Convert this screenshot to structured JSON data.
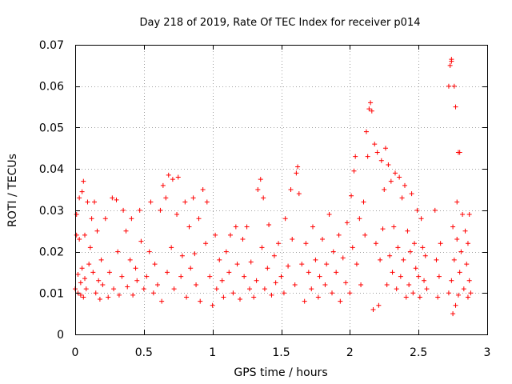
{
  "chart_data": {
    "type": "scatter",
    "title": "Day 218 of 2019, Rate Of TEC Index for receiver p014",
    "xlabel": "GPS time / hours",
    "ylabel": "ROTI / TECUs",
    "xlim": [
      0,
      3
    ],
    "ylim": [
      0,
      0.07
    ],
    "x_ticks": [
      0,
      0.5,
      1,
      1.5,
      2,
      2.5,
      3
    ],
    "x_tick_labels": [
      "0",
      "0.5",
      "1",
      "1.5",
      "2",
      "2.5",
      "3"
    ],
    "y_ticks": [
      0,
      0.01,
      0.02,
      0.03,
      0.04,
      0.05,
      0.06,
      0.07
    ],
    "y_tick_labels": [
      "0",
      "0.01",
      "0.02",
      "0.03",
      "0.04",
      "0.05",
      "0.06",
      "0.07"
    ],
    "grid": true,
    "marker": "+",
    "color": "#ff0000",
    "series": [
      {
        "name": "p014",
        "points": [
          [
            0.0,
            0.011
          ],
          [
            0.01,
            0.024
          ],
          [
            0.01,
            0.029
          ],
          [
            0.02,
            0.01
          ],
          [
            0.02,
            0.0145
          ],
          [
            0.03,
            0.023
          ],
          [
            0.03,
            0.033
          ],
          [
            0.04,
            0.0095
          ],
          [
            0.04,
            0.0125
          ],
          [
            0.05,
            0.0345
          ],
          [
            0.05,
            0.016
          ],
          [
            0.06,
            0.037
          ],
          [
            0.06,
            0.009
          ],
          [
            0.07,
            0.024
          ],
          [
            0.07,
            0.0135
          ],
          [
            0.08,
            0.011
          ],
          [
            0.09,
            0.032
          ],
          [
            0.1,
            0.017
          ],
          [
            0.11,
            0.021
          ],
          [
            0.12,
            0.028
          ],
          [
            0.13,
            0.015
          ],
          [
            0.14,
            0.032
          ],
          [
            0.15,
            0.01
          ],
          [
            0.16,
            0.025
          ],
          [
            0.17,
            0.013
          ],
          [
            0.18,
            0.0085
          ],
          [
            0.19,
            0.018
          ],
          [
            0.2,
            0.012
          ],
          [
            0.22,
            0.028
          ],
          [
            0.24,
            0.009
          ],
          [
            0.25,
            0.015
          ],
          [
            0.27,
            0.033
          ],
          [
            0.28,
            0.011
          ],
          [
            0.3,
            0.0325
          ],
          [
            0.31,
            0.02
          ],
          [
            0.32,
            0.0095
          ],
          [
            0.34,
            0.014
          ],
          [
            0.35,
            0.03
          ],
          [
            0.37,
            0.025
          ],
          [
            0.38,
            0.0115
          ],
          [
            0.4,
            0.018
          ],
          [
            0.41,
            0.028
          ],
          [
            0.42,
            0.0095
          ],
          [
            0.44,
            0.016
          ],
          [
            0.45,
            0.013
          ],
          [
            0.47,
            0.03
          ],
          [
            0.48,
            0.0225
          ],
          [
            0.5,
            0.011
          ],
          [
            0.52,
            0.014
          ],
          [
            0.54,
            0.02
          ],
          [
            0.55,
            0.032
          ],
          [
            0.57,
            0.01
          ],
          [
            0.58,
            0.017
          ],
          [
            0.6,
            0.012
          ],
          [
            0.62,
            0.03
          ],
          [
            0.63,
            0.008
          ],
          [
            0.64,
            0.036
          ],
          [
            0.66,
            0.033
          ],
          [
            0.67,
            0.015
          ],
          [
            0.68,
            0.0385
          ],
          [
            0.7,
            0.021
          ],
          [
            0.71,
            0.0375
          ],
          [
            0.72,
            0.011
          ],
          [
            0.74,
            0.029
          ],
          [
            0.75,
            0.038
          ],
          [
            0.77,
            0.014
          ],
          [
            0.78,
            0.019
          ],
          [
            0.8,
            0.032
          ],
          [
            0.81,
            0.009
          ],
          [
            0.83,
            0.026
          ],
          [
            0.84,
            0.016
          ],
          [
            0.86,
            0.033
          ],
          [
            0.87,
            0.0195
          ],
          [
            0.88,
            0.012
          ],
          [
            0.9,
            0.028
          ],
          [
            0.91,
            0.008
          ],
          [
            0.93,
            0.035
          ],
          [
            0.95,
            0.022
          ],
          [
            0.96,
            0.032
          ],
          [
            0.98,
            0.014
          ],
          [
            1.0,
            0.007
          ],
          [
            1.02,
            0.024
          ],
          [
            1.03,
            0.011
          ],
          [
            1.05,
            0.018
          ],
          [
            1.07,
            0.013
          ],
          [
            1.08,
            0.009
          ],
          [
            1.1,
            0.02
          ],
          [
            1.12,
            0.015
          ],
          [
            1.13,
            0.024
          ],
          [
            1.15,
            0.01
          ],
          [
            1.17,
            0.026
          ],
          [
            1.18,
            0.017
          ],
          [
            1.2,
            0.0085
          ],
          [
            1.22,
            0.023
          ],
          [
            1.23,
            0.014
          ],
          [
            1.25,
            0.026
          ],
          [
            1.27,
            0.011
          ],
          [
            1.28,
            0.0175
          ],
          [
            1.3,
            0.009
          ],
          [
            1.32,
            0.013
          ],
          [
            1.33,
            0.035
          ],
          [
            1.35,
            0.0375
          ],
          [
            1.36,
            0.021
          ],
          [
            1.37,
            0.033
          ],
          [
            1.38,
            0.011
          ],
          [
            1.4,
            0.016
          ],
          [
            1.41,
            0.0265
          ],
          [
            1.43,
            0.0095
          ],
          [
            1.45,
            0.019
          ],
          [
            1.46,
            0.0125
          ],
          [
            1.48,
            0.022
          ],
          [
            1.5,
            0.014
          ],
          [
            1.52,
            0.01
          ],
          [
            1.53,
            0.028
          ],
          [
            1.55,
            0.0165
          ],
          [
            1.57,
            0.035
          ],
          [
            1.58,
            0.023
          ],
          [
            1.6,
            0.012
          ],
          [
            1.61,
            0.039
          ],
          [
            1.62,
            0.0405
          ],
          [
            1.63,
            0.034
          ],
          [
            1.65,
            0.017
          ],
          [
            1.67,
            0.008
          ],
          [
            1.68,
            0.022
          ],
          [
            1.7,
            0.015
          ],
          [
            1.72,
            0.011
          ],
          [
            1.73,
            0.026
          ],
          [
            1.75,
            0.018
          ],
          [
            1.77,
            0.009
          ],
          [
            1.78,
            0.014
          ],
          [
            1.8,
            0.023
          ],
          [
            1.82,
            0.012
          ],
          [
            1.83,
            0.017
          ],
          [
            1.85,
            0.029
          ],
          [
            1.87,
            0.01
          ],
          [
            1.88,
            0.02
          ],
          [
            1.9,
            0.015
          ],
          [
            1.92,
            0.024
          ],
          [
            1.93,
            0.008
          ],
          [
            1.95,
            0.0185
          ],
          [
            1.97,
            0.0125
          ],
          [
            1.98,
            0.027
          ],
          [
            2.0,
            0.01
          ],
          [
            2.01,
            0.0335
          ],
          [
            2.02,
            0.021
          ],
          [
            2.03,
            0.0395
          ],
          [
            2.04,
            0.043
          ],
          [
            2.05,
            0.017
          ],
          [
            2.07,
            0.028
          ],
          [
            2.08,
            0.012
          ],
          [
            2.1,
            0.032
          ],
          [
            2.11,
            0.024
          ],
          [
            2.12,
            0.049
          ],
          [
            2.13,
            0.043
          ],
          [
            2.14,
            0.0545
          ],
          [
            2.15,
            0.056
          ],
          [
            2.16,
            0.054
          ],
          [
            2.17,
            0.006
          ],
          [
            2.18,
            0.046
          ],
          [
            2.19,
            0.022
          ],
          [
            2.2,
            0.044
          ],
          [
            2.21,
            0.007
          ],
          [
            2.22,
            0.018
          ],
          [
            2.23,
            0.042
          ],
          [
            2.24,
            0.0255
          ],
          [
            2.25,
            0.035
          ],
          [
            2.26,
            0.045
          ],
          [
            2.27,
            0.012
          ],
          [
            2.28,
            0.041
          ],
          [
            2.29,
            0.019
          ],
          [
            2.3,
            0.037
          ],
          [
            2.31,
            0.015
          ],
          [
            2.32,
            0.026
          ],
          [
            2.33,
            0.039
          ],
          [
            2.34,
            0.011
          ],
          [
            2.35,
            0.021
          ],
          [
            2.36,
            0.038
          ],
          [
            2.37,
            0.014
          ],
          [
            2.38,
            0.033
          ],
          [
            2.39,
            0.018
          ],
          [
            2.4,
            0.036
          ],
          [
            2.41,
            0.009
          ],
          [
            2.42,
            0.025
          ],
          [
            2.43,
            0.012
          ],
          [
            2.44,
            0.02
          ],
          [
            2.45,
            0.034
          ],
          [
            2.46,
            0.01
          ],
          [
            2.47,
            0.022
          ],
          [
            2.48,
            0.016
          ],
          [
            2.49,
            0.03
          ],
          [
            2.5,
            0.014
          ],
          [
            2.51,
            0.009
          ],
          [
            2.52,
            0.028
          ],
          [
            2.53,
            0.021
          ],
          [
            2.54,
            0.013
          ],
          [
            2.55,
            0.019
          ],
          [
            2.56,
            0.011
          ],
          [
            2.62,
            0.03
          ],
          [
            2.63,
            0.018
          ],
          [
            2.64,
            0.009
          ],
          [
            2.65,
            0.014
          ],
          [
            2.66,
            0.022
          ],
          [
            2.72,
            0.01
          ],
          [
            2.72,
            0.06
          ],
          [
            2.73,
            0.065
          ],
          [
            2.74,
            0.0665
          ],
          [
            2.74,
            0.066
          ],
          [
            2.74,
            0.013
          ],
          [
            2.75,
            0.005
          ],
          [
            2.75,
            0.026
          ],
          [
            2.76,
            0.018
          ],
          [
            2.76,
            0.06
          ],
          [
            2.77,
            0.007
          ],
          [
            2.77,
            0.055
          ],
          [
            2.78,
            0.023
          ],
          [
            2.78,
            0.032
          ],
          [
            2.79,
            0.0095
          ],
          [
            2.79,
            0.044
          ],
          [
            2.8,
            0.044
          ],
          [
            2.8,
            0.015
          ],
          [
            2.81,
            0.02
          ],
          [
            2.82,
            0.029
          ],
          [
            2.83,
            0.011
          ],
          [
            2.84,
            0.025
          ],
          [
            2.85,
            0.017
          ],
          [
            2.86,
            0.009
          ],
          [
            2.86,
            0.022
          ],
          [
            2.87,
            0.013
          ],
          [
            2.87,
            0.029
          ],
          [
            2.88,
            0.01
          ]
        ]
      }
    ]
  }
}
